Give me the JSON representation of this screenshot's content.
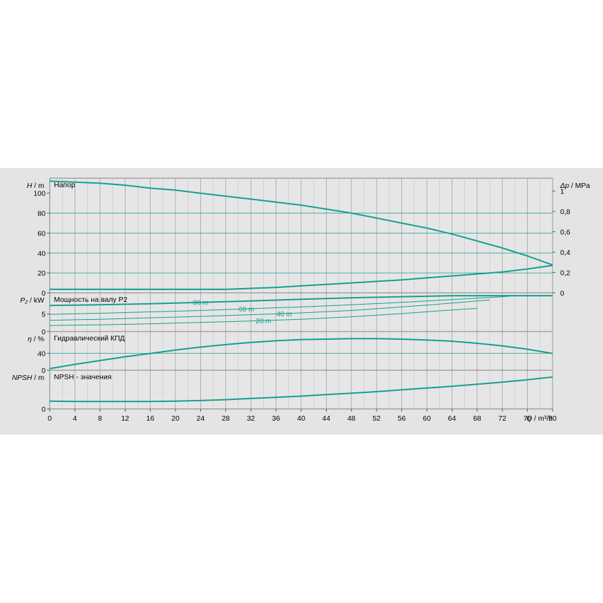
{
  "colors": {
    "curve": "#12a08e",
    "grid": "#a0a0a0",
    "panel_bg": "#e4e4e4",
    "plot_bg": "#e6e6e6",
    "border": "#808080"
  },
  "chart_data": {
    "type": "line",
    "x": {
      "label_var": "Q",
      "label_unit": " / m³/h",
      "range": [
        0,
        80
      ],
      "ticks": [
        0,
        4,
        8,
        12,
        16,
        20,
        24,
        28,
        32,
        36,
        40,
        44,
        48,
        52,
        56,
        60,
        64,
        68,
        72,
        76,
        80
      ]
    },
    "panels": [
      {
        "id": "head",
        "title": "Напор",
        "y_var": "H",
        "y_unit": " / m",
        "y_range": [
          0,
          115
        ],
        "y_ticks": [
          0,
          20,
          40,
          60,
          80,
          100
        ],
        "right_axis": {
          "var": "Δp",
          "unit": " / MPa",
          "ticks": [
            "0",
            "0,2",
            "0,4",
            "0,6",
            "0,8",
            "1"
          ],
          "values": [
            0,
            0.2,
            0.4,
            0.6,
            0.8,
            1.0
          ],
          "scale": 0.0098
        },
        "h_lines": [
          20,
          40,
          60,
          80
        ],
        "series": [
          {
            "x": [
              0,
              4,
              8,
              12,
              16,
              20,
              24,
              28,
              32,
              36,
              40,
              44,
              48,
              52,
              56,
              60,
              64,
              68,
              72,
              76,
              80
            ],
            "y": [
              112,
              111,
              110,
              108,
              105,
              103,
              100,
              97,
              94,
              91,
              88,
              84,
              80,
              75,
              70,
              65,
              59,
              52,
              45,
              37,
              28
            ]
          },
          {
            "x": [
              0,
              4,
              8,
              12,
              16,
              20,
              24,
              28,
              32,
              36,
              40,
              44,
              48,
              52,
              56,
              60,
              64,
              68,
              72,
              76,
              80
            ],
            "y": [
              3.5,
              3.5,
              3.5,
              3.5,
              3.5,
              3.5,
              3.5,
              3.5,
              4.5,
              5.5,
              7,
              8.5,
              10,
              11.5,
              13,
              15,
              17,
              19,
              21,
              24,
              27.5
            ]
          }
        ]
      },
      {
        "id": "power",
        "title": "Мощность на валу P2",
        "y_var": "P₂",
        "y_unit": " / kW",
        "y_range": [
          0,
          11
        ],
        "y_ticks": [
          0,
          5
        ],
        "series": [
          {
            "label": "80 m",
            "x": [
              0,
              8,
              16,
              24,
              32,
              40,
              48,
              56,
              64,
              72,
              80
            ],
            "y": [
              7.4,
              7.6,
              7.9,
              8.3,
              8.7,
              9.2,
              9.6,
              9.9,
              10.2,
              10.2,
              10.2
            ]
          },
          {
            "label": "60 m",
            "x": [
              0,
              8,
              16,
              24,
              32,
              40,
              48,
              56,
              64,
              72,
              74
            ],
            "y": [
              4.9,
              5.2,
              5.6,
              6.0,
              6.5,
              7.0,
              7.6,
              8.3,
              9.1,
              9.9,
              10.2
            ]
          },
          {
            "label": "40 m",
            "x": [
              0,
              8,
              16,
              24,
              32,
              40,
              48,
              56,
              62,
              66,
              70
            ],
            "y": [
              3.2,
              3.5,
              3.9,
              4.3,
              4.8,
              5.3,
              6.0,
              7.0,
              7.8,
              8.4,
              9.0
            ]
          },
          {
            "label": "20 m",
            "x": [
              0,
              8,
              16,
              24,
              32,
              40,
              48,
              56,
              62,
              68
            ],
            "y": [
              1.7,
              1.9,
              2.2,
              2.6,
              3.0,
              3.5,
              4.2,
              5.1,
              5.9,
              6.6
            ]
          }
        ],
        "curve_labels": [
          {
            "text": "80 m",
            "x": 24
          },
          {
            "text": "60 m",
            "x": 31.3
          },
          {
            "text": "40 m",
            "x": 37.3
          },
          {
            "text": "20 m",
            "x": 34
          }
        ]
      },
      {
        "id": "efficiency",
        "title": "Гидравлический КПД",
        "y_var": "η",
        "y_unit": " / %",
        "y_range": [
          0,
          92
        ],
        "y_ticks": [
          0,
          40
        ],
        "h_lines": [
          40
        ],
        "series": [
          {
            "x": [
              0,
              4,
              8,
              12,
              16,
              20,
              24,
              28,
              32,
              36,
              40,
              44,
              48,
              52,
              56,
              60,
              64,
              68,
              72,
              76,
              80
            ],
            "y": [
              4,
              14,
              23,
              32,
              40,
              48,
              55,
              61,
              66,
              70,
              73,
              74,
              75,
              75,
              74,
              72,
              69,
              64,
              58,
              50,
              40
            ]
          }
        ]
      },
      {
        "id": "npsh",
        "title": "NPSH - значения",
        "y_var": "NPSH",
        "y_unit": " / m",
        "y_range": [
          0,
          13
        ],
        "y_ticks": [
          0
        ],
        "series": [
          {
            "x": [
              0,
              4,
              8,
              12,
              16,
              20,
              24,
              28,
              32,
              36,
              40,
              44,
              48,
              52,
              56,
              60,
              64,
              68,
              72,
              76,
              80
            ],
            "y": [
              2.6,
              2.5,
              2.5,
              2.5,
              2.5,
              2.6,
              2.8,
              3.1,
              3.5,
              3.9,
              4.3,
              4.8,
              5.3,
              5.8,
              6.4,
              7.0,
              7.6,
              8.3,
              9.0,
              9.8,
              10.7
            ]
          }
        ]
      }
    ]
  }
}
